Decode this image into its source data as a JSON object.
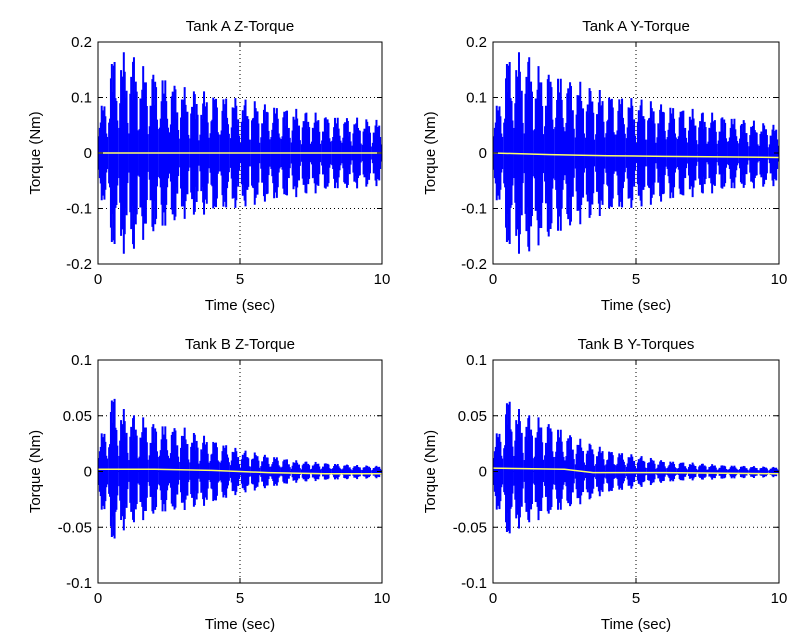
{
  "figure": {
    "background": "#ffffff",
    "envelope_color": "#0000ff",
    "mean_color": "#ffff66",
    "axis_color": "#000000"
  },
  "chart_data": [
    {
      "type": "line",
      "title": "Tank A Z-Torque",
      "xlabel": "Time (sec)",
      "ylabel": "Torque (Nm)",
      "xlim": [
        0,
        10
      ],
      "ylim": [
        -0.2,
        0.2
      ],
      "xticks": [
        0,
        5,
        10
      ],
      "xtick_labels": [
        "0",
        "5",
        "10"
      ],
      "yticks": [
        -0.2,
        -0.1,
        0,
        0.1,
        0.2
      ],
      "ytick_labels": [
        "-0.2",
        "-0.1",
        "0",
        "0.1",
        "0.2"
      ],
      "grid": "dotted at interior ticks",
      "series": [
        {
          "color": "#0000ff",
          "kind": "oscillation envelope (many overlaid runs)",
          "x": [
            0,
            0.3,
            0.5,
            0.8,
            1.0,
            1.5,
            2.0,
            3.0,
            4.0,
            5.0,
            6.0,
            7.0,
            8.0,
            9.0,
            10.0
          ],
          "upper": [
            0.05,
            0.12,
            0.18,
            0.17,
            0.2,
            0.16,
            0.15,
            0.12,
            0.11,
            0.1,
            0.09,
            0.08,
            0.07,
            0.065,
            0.06
          ],
          "lower": [
            -0.05,
            -0.12,
            -0.18,
            -0.17,
            -0.2,
            -0.16,
            -0.15,
            -0.12,
            -0.11,
            -0.1,
            -0.09,
            -0.08,
            -0.07,
            -0.065,
            -0.06
          ]
        },
        {
          "color": "#ffff66",
          "kind": "mean",
          "x": [
            0,
            10
          ],
          "y": [
            0,
            0
          ]
        }
      ]
    },
    {
      "type": "line",
      "title": "Tank A Y-Torque",
      "xlabel": "Time (sec)",
      "ylabel": "Torque (Nm)",
      "xlim": [
        0,
        10
      ],
      "ylim": [
        -0.2,
        0.2
      ],
      "xticks": [
        0,
        5,
        10
      ],
      "xtick_labels": [
        "0",
        "5",
        "10"
      ],
      "yticks": [
        -0.2,
        -0.1,
        0,
        0.1,
        0.2
      ],
      "ytick_labels": [
        "-0.2",
        "-0.1",
        "0",
        "0.1",
        "0.2"
      ],
      "grid": "dotted at interior ticks",
      "series": [
        {
          "color": "#0000ff",
          "kind": "oscillation envelope (many overlaid runs)",
          "x": [
            0,
            0.3,
            0.5,
            0.8,
            1.0,
            1.5,
            2.0,
            3.0,
            4.0,
            5.0,
            6.0,
            7.0,
            8.0,
            9.0,
            10.0
          ],
          "upper": [
            0.05,
            0.12,
            0.18,
            0.17,
            0.2,
            0.16,
            0.15,
            0.13,
            0.11,
            0.1,
            0.09,
            0.08,
            0.07,
            0.06,
            0.05
          ],
          "lower": [
            -0.05,
            -0.12,
            -0.18,
            -0.17,
            -0.2,
            -0.17,
            -0.16,
            -0.13,
            -0.11,
            -0.1,
            -0.09,
            -0.08,
            -0.07,
            -0.065,
            -0.06
          ]
        },
        {
          "color": "#ffff66",
          "kind": "mean",
          "x": [
            0,
            2,
            4,
            6,
            8,
            10
          ],
          "y": [
            0,
            -0.003,
            -0.005,
            -0.006,
            -0.007,
            -0.008
          ]
        }
      ]
    },
    {
      "type": "line",
      "title": "Tank B Z-Torque",
      "xlabel": "Time (sec)",
      "ylabel": "Torque (Nm)",
      "xlim": [
        0,
        10
      ],
      "ylim": [
        -0.1,
        0.1
      ],
      "xticks": [
        0,
        5,
        10
      ],
      "xtick_labels": [
        "0",
        "5",
        "10"
      ],
      "yticks": [
        -0.1,
        -0.05,
        0,
        0.05,
        0.1
      ],
      "ytick_labels": [
        "-0.1",
        "-0.05",
        "0",
        "0.05",
        "0.1"
      ],
      "grid": "dotted at interior ticks",
      "series": [
        {
          "color": "#0000ff",
          "kind": "oscillation envelope (many overlaid runs)",
          "x": [
            0,
            0.2,
            0.4,
            0.7,
            1.0,
            1.5,
            2.0,
            3.0,
            4.0,
            5.0,
            6.0,
            7.0,
            8.0,
            9.0,
            10.0
          ],
          "upper": [
            0.01,
            0.04,
            0.08,
            0.06,
            0.055,
            0.05,
            0.045,
            0.04,
            0.03,
            0.02,
            0.015,
            0.01,
            0.008,
            0.006,
            0.005
          ],
          "lower": [
            -0.01,
            -0.04,
            -0.07,
            -0.06,
            -0.05,
            -0.045,
            -0.04,
            -0.035,
            -0.03,
            -0.02,
            -0.015,
            -0.01,
            -0.008,
            -0.007,
            -0.006
          ]
        },
        {
          "color": "#ffff66",
          "kind": "mean",
          "x": [
            0,
            2,
            4,
            6,
            8,
            10
          ],
          "y": [
            0.002,
            0.002,
            0.001,
            -0.001,
            -0.002,
            -0.002
          ]
        }
      ]
    },
    {
      "type": "line",
      "title": "Tank B Y-Torques",
      "xlabel": "Time (sec)",
      "ylabel": "Torque (Nm)",
      "xlim": [
        0,
        10
      ],
      "ylim": [
        -0.1,
        0.1
      ],
      "xticks": [
        0,
        5,
        10
      ],
      "xtick_labels": [
        "0",
        "5",
        "10"
      ],
      "yticks": [
        -0.1,
        -0.05,
        0,
        0.05,
        0.1
      ],
      "ytick_labels": [
        "-0.1",
        "-0.05",
        "0",
        "0.05",
        "0.1"
      ],
      "grid": "dotted at interior ticks",
      "series": [
        {
          "color": "#0000ff",
          "kind": "oscillation envelope (many overlaid runs)",
          "x": [
            0,
            0.2,
            0.4,
            0.7,
            1.0,
            1.5,
            2.0,
            3.0,
            4.0,
            5.0,
            6.0,
            7.0,
            8.0,
            9.0,
            10.0
          ],
          "upper": [
            0.01,
            0.04,
            0.075,
            0.06,
            0.055,
            0.05,
            0.045,
            0.03,
            0.02,
            0.015,
            0.01,
            0.008,
            0.006,
            0.005,
            0.004
          ],
          "lower": [
            -0.01,
            -0.04,
            -0.065,
            -0.055,
            -0.05,
            -0.045,
            -0.04,
            -0.03,
            -0.02,
            -0.015,
            -0.01,
            -0.008,
            -0.007,
            -0.006,
            -0.005
          ]
        },
        {
          "color": "#ffff66",
          "kind": "mean",
          "x": [
            0,
            2.5,
            3.5,
            6,
            10
          ],
          "y": [
            0.003,
            0.002,
            -0.001,
            -0.001,
            -0.002
          ]
        }
      ]
    }
  ]
}
